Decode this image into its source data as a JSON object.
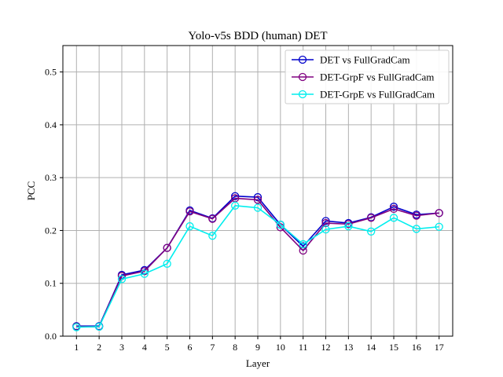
{
  "chart_data": {
    "type": "line",
    "title": "Yolo-v5s BDD (human) DET",
    "xlabel": "Layer",
    "ylabel": "PCC",
    "x": [
      1,
      2,
      3,
      4,
      5,
      6,
      7,
      8,
      9,
      10,
      11,
      12,
      13,
      14,
      15,
      16,
      17
    ],
    "xticks": [
      "1",
      "2",
      "3",
      "4",
      "5",
      "6",
      "7",
      "8",
      "9",
      "10",
      "11",
      "12",
      "13",
      "14",
      "15",
      "16",
      "17"
    ],
    "xlim": [
      0.4,
      17.6
    ],
    "ylim": [
      0.0,
      0.55
    ],
    "yticks": [
      "0.0",
      "0.1",
      "0.2",
      "0.3",
      "0.4",
      "0.5"
    ],
    "ytick_values": [
      0.0,
      0.1,
      0.2,
      0.3,
      0.4,
      0.5
    ],
    "grid": true,
    "legend_position": "top-right",
    "series": [
      {
        "name": "DET vs FullGradCam",
        "color": "#0000cc",
        "values": [
          0.019,
          0.019,
          0.116,
          0.125,
          0.167,
          0.238,
          0.223,
          0.265,
          0.263,
          0.211,
          0.17,
          0.218,
          0.214,
          0.225,
          0.245,
          0.23,
          0.233
        ]
      },
      {
        "name": "DET-GrpF vs FullGradCam",
        "color": "#800080",
        "values": [
          0.018,
          0.018,
          0.114,
          0.123,
          0.167,
          0.236,
          0.222,
          0.261,
          0.258,
          0.206,
          0.162,
          0.214,
          0.212,
          0.224,
          0.241,
          0.228,
          0.233
        ]
      },
      {
        "name": "DET-GrpE vs FullGradCam",
        "color": "#00eeee",
        "values": [
          0.017,
          0.018,
          0.108,
          0.118,
          0.137,
          0.208,
          0.19,
          0.247,
          0.243,
          0.211,
          0.174,
          0.202,
          0.208,
          0.198,
          0.224,
          0.203,
          0.207
        ]
      }
    ]
  }
}
